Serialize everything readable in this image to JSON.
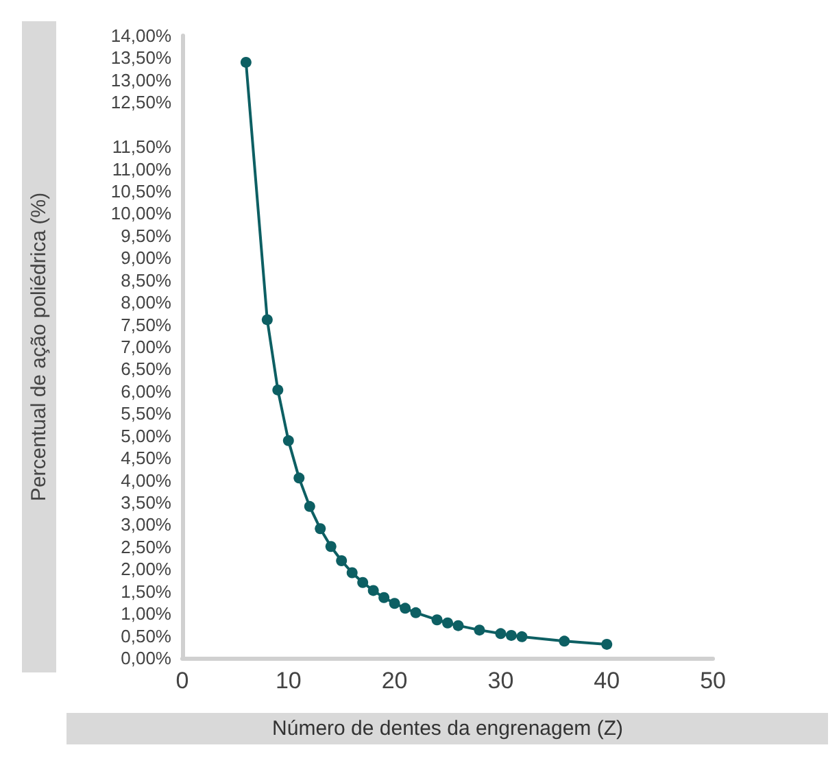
{
  "chart_data": {
    "type": "line",
    "xlabel": "Número de dentes da engrenagem (Z)",
    "ylabel": "Percentual de ação poliédrica (%)",
    "x": [
      6,
      8,
      9,
      10,
      11,
      12,
      13,
      14,
      15,
      16,
      17,
      18,
      19,
      20,
      21,
      22,
      24,
      25,
      26,
      28,
      30,
      31,
      32,
      36,
      40
    ],
    "series": [
      {
        "color": "#0d5f63",
        "values": [
          13.4,
          7.61,
          6.03,
          4.89,
          4.05,
          3.41,
          2.91,
          2.51,
          2.19,
          1.92,
          1.7,
          1.52,
          1.36,
          1.23,
          1.12,
          1.02,
          0.86,
          0.79,
          0.73,
          0.63,
          0.55,
          0.51,
          0.48,
          0.38,
          0.31
        ]
      }
    ],
    "xlim": [
      0,
      50
    ],
    "xticks": [
      0,
      10,
      20,
      30,
      40,
      50
    ],
    "ylim": [
      0,
      14
    ],
    "yticks": [
      {
        "value": 0,
        "label": "0,00%"
      },
      {
        "value": 0.5,
        "label": "0,50%"
      },
      {
        "value": 1,
        "label": "1,00%"
      },
      {
        "value": 1.5,
        "label": "1,50%"
      },
      {
        "value": 2,
        "label": "2,00%"
      },
      {
        "value": 2.5,
        "label": "2,50%"
      },
      {
        "value": 3,
        "label": "3,00%"
      },
      {
        "value": 3.5,
        "label": "3,50%"
      },
      {
        "value": 4,
        "label": "4,00%"
      },
      {
        "value": 4.5,
        "label": "4,50%"
      },
      {
        "value": 5,
        "label": "5,00%"
      },
      {
        "value": 5.5,
        "label": "5,50%"
      },
      {
        "value": 6,
        "label": "6,00%"
      },
      {
        "value": 6.5,
        "label": "6,50%"
      },
      {
        "value": 7,
        "label": "7,00%"
      },
      {
        "value": 7.5,
        "label": "7,50%"
      },
      {
        "value": 8,
        "label": "8,00%"
      },
      {
        "value": 8.5,
        "label": "8,50%"
      },
      {
        "value": 9,
        "label": "9,00%"
      },
      {
        "value": 9.5,
        "label": "9,50%"
      },
      {
        "value": 10,
        "label": "10,00%"
      },
      {
        "value": 10.5,
        "label": "10,50%"
      },
      {
        "value": 11,
        "label": "11,00%"
      },
      {
        "value": 11.5,
        "label": "11,50%"
      },
      {
        "value": 12.5,
        "label": "12,50%"
      },
      {
        "value": 13,
        "label": "13,00%"
      },
      {
        "value": 13.5,
        "label": "13,50%"
      },
      {
        "value": 14,
        "label": "14,00%"
      }
    ],
    "marker": "circle",
    "line_style": "solid",
    "grid": false
  }
}
